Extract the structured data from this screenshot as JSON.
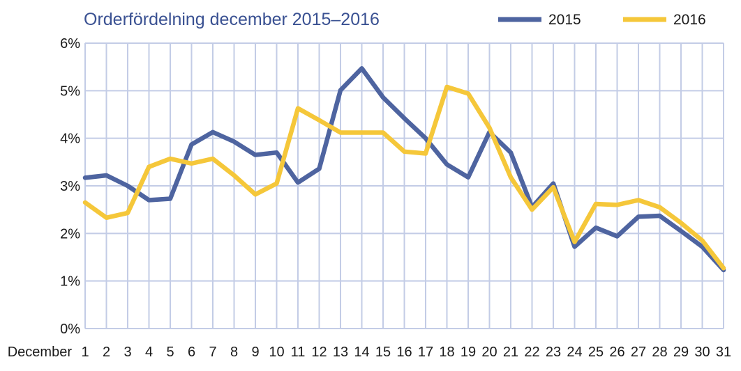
{
  "chart_data": {
    "type": "line",
    "title": "Orderfördelning december 2015–2016",
    "xlabel": "December",
    "ylabel": "",
    "x": [
      1,
      2,
      3,
      4,
      5,
      6,
      7,
      8,
      9,
      10,
      11,
      12,
      13,
      14,
      15,
      16,
      17,
      18,
      19,
      20,
      21,
      22,
      23,
      24,
      25,
      26,
      27,
      28,
      29,
      30,
      31
    ],
    "y_ticks": [
      "0%",
      "1%",
      "2%",
      "3%",
      "4%",
      "5%",
      "6%"
    ],
    "ylim": [
      0,
      6
    ],
    "grid": true,
    "legend_position": "top-right",
    "series": [
      {
        "name": "2015",
        "color": "#4e64a0",
        "values": [
          3.17,
          3.22,
          3.0,
          2.7,
          2.73,
          3.87,
          4.13,
          3.93,
          3.65,
          3.7,
          3.07,
          3.36,
          5.01,
          5.47,
          4.86,
          4.42,
          4.0,
          3.45,
          3.18,
          4.13,
          3.7,
          2.55,
          3.05,
          1.72,
          2.12,
          1.94,
          2.35,
          2.37,
          2.05,
          1.72,
          1.23
        ]
      },
      {
        "name": "2016",
        "color": "#f5c73a",
        "values": [
          2.65,
          2.33,
          2.43,
          3.4,
          3.57,
          3.47,
          3.57,
          3.22,
          2.82,
          3.05,
          4.63,
          4.38,
          4.12,
          4.12,
          4.12,
          3.72,
          3.68,
          5.08,
          4.94,
          4.22,
          3.18,
          2.5,
          2.97,
          1.82,
          2.62,
          2.6,
          2.7,
          2.55,
          2.22,
          1.85,
          1.27
        ]
      }
    ]
  },
  "colors": {
    "title": "#3a5192",
    "grid": "#c3cce6",
    "axis_text": "#1a1a1a",
    "series_2015": "#4e64a0",
    "series_2016": "#f5c73a"
  }
}
